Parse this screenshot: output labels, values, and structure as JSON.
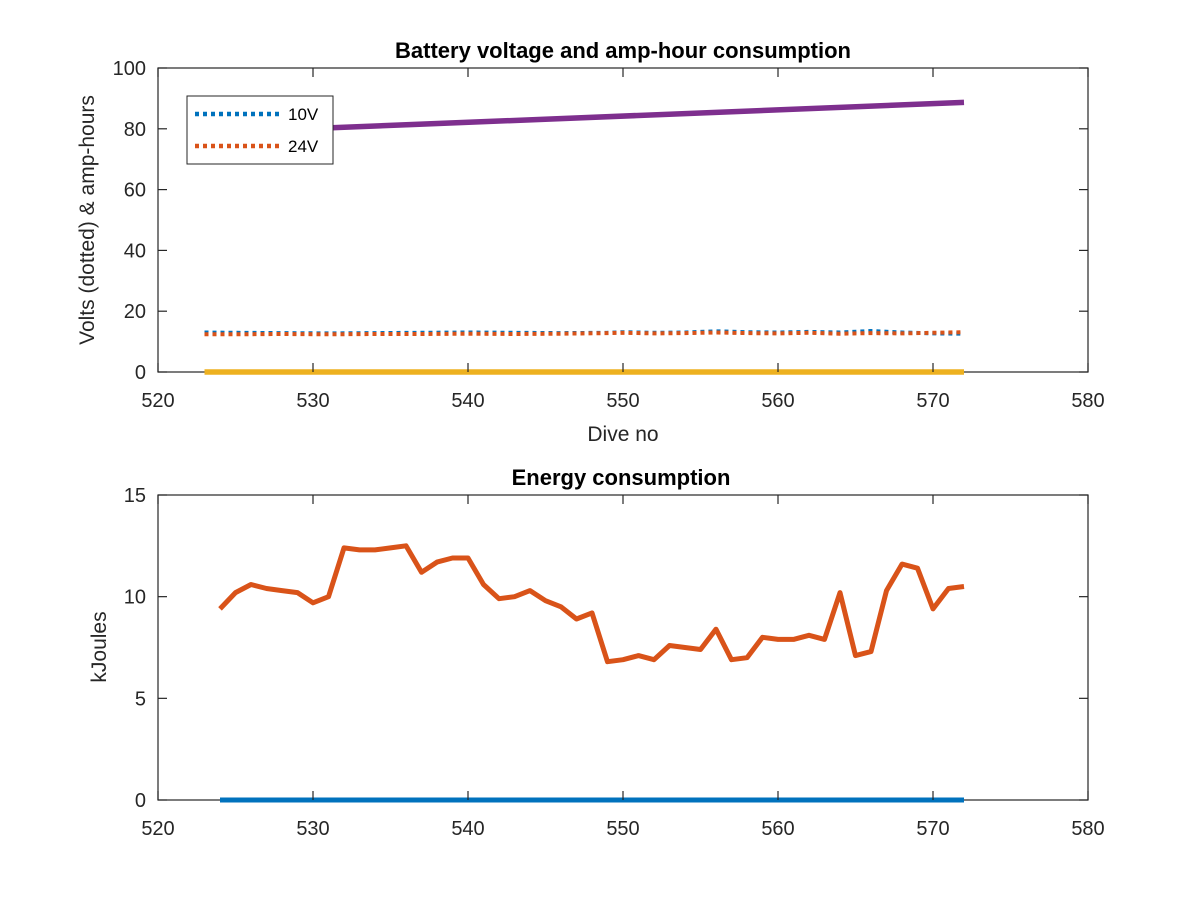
{
  "chart_data": [
    {
      "type": "line",
      "title": "Battery voltage and amp-hour consumption",
      "xlabel": "Dive no",
      "ylabel": "Volts (dotted) & amp-hours",
      "xlim": [
        520,
        580
      ],
      "ylim": [
        0,
        100
      ],
      "xticks": [
        520,
        530,
        540,
        550,
        560,
        570,
        580
      ],
      "yticks": [
        0,
        20,
        40,
        60,
        80,
        100
      ],
      "grid": false,
      "legend_position": "top-left",
      "series": [
        {
          "name": "10V",
          "color": "#0072BD",
          "style": "dotted",
          "x": [
            523,
            525,
            528,
            531,
            534,
            537,
            540,
            543,
            546,
            549,
            550,
            552,
            554,
            556,
            558,
            560,
            562,
            564,
            566,
            568,
            570,
            572
          ],
          "y": [
            13.0,
            12.9,
            12.8,
            12.7,
            12.8,
            12.9,
            13.0,
            12.9,
            12.8,
            12.9,
            13.1,
            12.9,
            13.0,
            13.4,
            13.1,
            13.0,
            13.2,
            13.0,
            13.5,
            13.0,
            12.7,
            12.6
          ]
        },
        {
          "name": "24V",
          "color": "#D95319",
          "style": "dotted",
          "x": [
            523,
            525,
            528,
            531,
            534,
            537,
            540,
            543,
            546,
            549,
            550,
            552,
            554,
            556,
            558,
            560,
            562,
            564,
            566,
            568,
            570,
            572
          ],
          "y": [
            12.4,
            12.4,
            12.5,
            12.4,
            12.5,
            12.5,
            12.6,
            12.5,
            12.6,
            12.8,
            12.9,
            12.7,
            12.8,
            13.0,
            12.8,
            12.7,
            12.9,
            12.6,
            12.8,
            12.7,
            12.9,
            13.1
          ]
        },
        {
          "color": "#EDB120",
          "style": "solid",
          "x": [
            523,
            572
          ],
          "y": [
            0,
            0
          ]
        },
        {
          "color": "#7E2F8E",
          "style": "solid",
          "x": [
            531,
            572
          ],
          "y": [
            80.3,
            88.7
          ]
        }
      ]
    },
    {
      "type": "line",
      "title": "Energy consumption",
      "xlabel": "",
      "ylabel": "kJoules",
      "xlim": [
        520,
        580
      ],
      "ylim": [
        0,
        15
      ],
      "xticks": [
        520,
        530,
        540,
        550,
        560,
        570,
        580
      ],
      "yticks": [
        0,
        5,
        10,
        15
      ],
      "grid": false,
      "series": [
        {
          "color": "#0072BD",
          "style": "solid",
          "x": [
            524,
            572
          ],
          "y": [
            0,
            0
          ]
        },
        {
          "color": "#D95319",
          "style": "solid",
          "x": [
            524,
            525,
            526,
            527,
            528,
            529,
            530,
            531,
            532,
            533,
            534,
            535,
            536,
            537,
            538,
            539,
            540,
            541,
            542,
            543,
            544,
            545,
            546,
            547,
            548,
            549,
            550,
            551,
            552,
            553,
            554,
            555,
            556,
            557,
            558,
            559,
            560,
            561,
            562,
            563,
            564,
            565,
            566,
            567,
            568,
            569,
            570,
            571,
            572
          ],
          "y": [
            9.4,
            10.2,
            10.6,
            10.4,
            10.3,
            10.2,
            9.7,
            10.0,
            12.4,
            12.3,
            12.3,
            12.4,
            12.5,
            11.2,
            11.7,
            11.9,
            11.9,
            10.6,
            9.9,
            10.0,
            10.3,
            9.8,
            9.5,
            8.9,
            9.2,
            6.8,
            6.9,
            7.1,
            6.9,
            7.6,
            7.5,
            7.4,
            8.4,
            6.9,
            7.0,
            8.0,
            7.9,
            7.9,
            8.1,
            7.9,
            10.2,
            7.1,
            7.3,
            10.3,
            11.6,
            11.4,
            9.4,
            10.4,
            10.5
          ]
        }
      ]
    }
  ]
}
